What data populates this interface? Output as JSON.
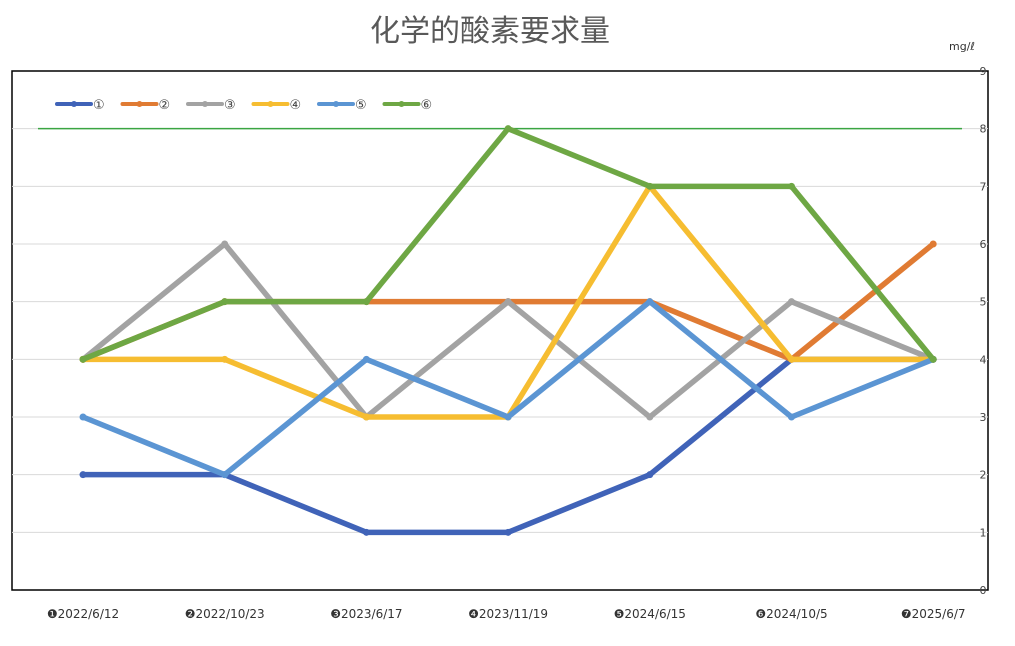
{
  "chart_data": {
    "type": "line",
    "title": "化学的酸素要求量",
    "unit_label": "mg/ℓ",
    "categories": [
      "❶2022/6/12",
      "❷2022/10/23",
      "❸2023/6/17",
      "❹2023/11/19",
      "❺2024/6/15",
      "❻2024/10/5",
      "❼2025/6/7"
    ],
    "ylim": [
      0,
      9
    ],
    "yticks": [
      "0",
      "1",
      "2",
      "3",
      "4",
      "5",
      "6",
      "7",
      "8",
      "9"
    ],
    "y_axis_side": "right",
    "grid": true,
    "legend_position": "top-left",
    "reference_line": {
      "value": 8,
      "color": "#3aa542"
    },
    "series": [
      {
        "name": "①",
        "color": "#4063b8",
        "values": [
          2,
          2,
          1,
          1,
          2,
          4,
          4
        ]
      },
      {
        "name": "②",
        "color": "#e07b33",
        "values": [
          4,
          5,
          5,
          5,
          5,
          4,
          6
        ]
      },
      {
        "name": "③",
        "color": "#a3a3a3",
        "values": [
          4,
          6,
          3,
          5,
          3,
          5,
          4
        ]
      },
      {
        "name": "④",
        "color": "#f6bd31",
        "values": [
          4,
          4,
          3,
          3,
          7,
          4,
          4
        ]
      },
      {
        "name": "⑤",
        "color": "#5b95d3",
        "values": [
          3,
          2,
          4,
          3,
          5,
          3,
          4
        ]
      },
      {
        "name": "⑥",
        "color": "#6ea744",
        "values": [
          4,
          5,
          5,
          8,
          7,
          7,
          4
        ]
      }
    ]
  }
}
